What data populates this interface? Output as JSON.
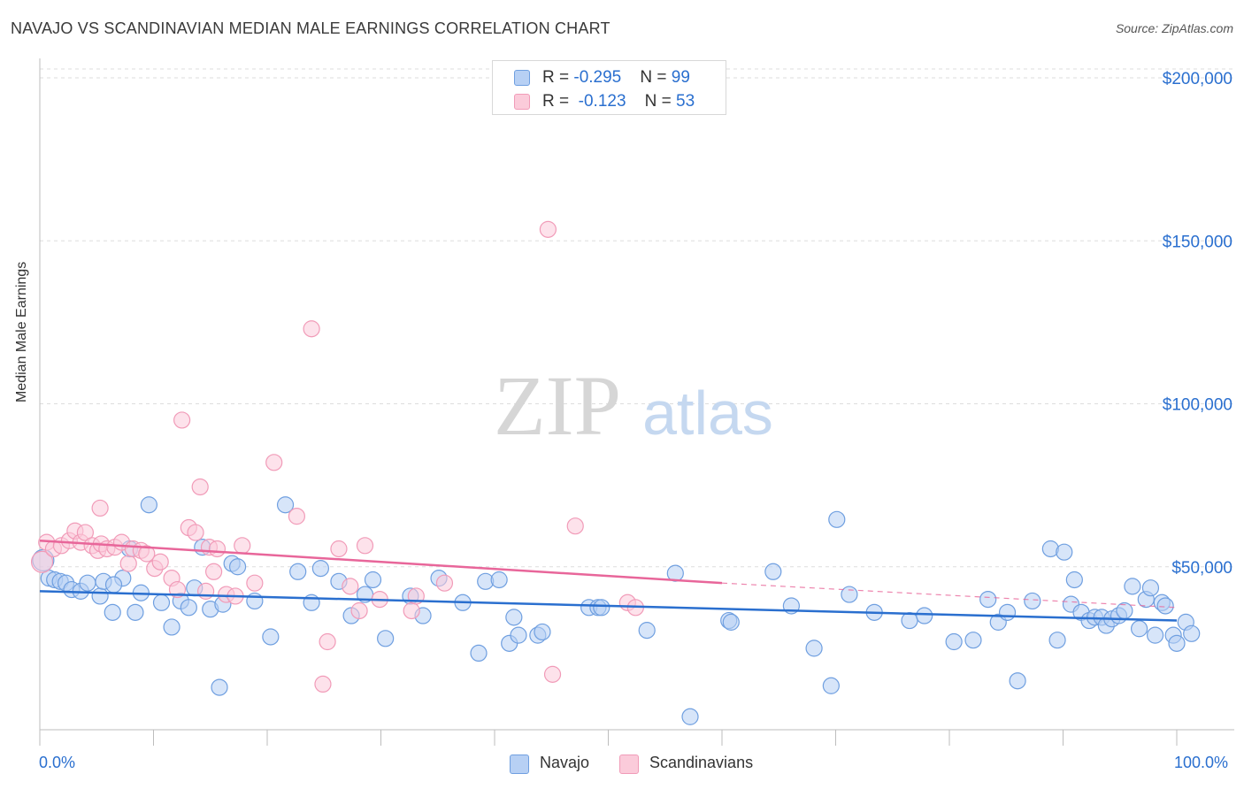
{
  "header": {
    "title": "NAVAJO VS SCANDINAVIAN MEDIAN MALE EARNINGS CORRELATION CHART",
    "source": "Source: ZipAtlas.com"
  },
  "watermark": {
    "zip": "ZIP",
    "atlas": "atlas"
  },
  "legend_top": [
    {
      "r_label": "R = ",
      "r_value": "-0.295",
      "n_label": "N = ",
      "n_value": "99",
      "color": "#6f9fe0",
      "fill": "#b7d0f4"
    },
    {
      "r_label": "R = ",
      "r_value": "-0.123",
      "n_label": "N = ",
      "n_value": "53",
      "color": "#f19bb8",
      "fill": "#fbcbda"
    }
  ],
  "legend_bottom": {
    "navajo": "Navajo",
    "scandinavians": "Scandinavians"
  },
  "chart_data": {
    "type": "scatter",
    "title": "NAVAJO VS SCANDINAVIAN MEDIAN MALE EARNINGS CORRELATION CHART",
    "xlabel": "",
    "ylabel": "Median Male Earnings",
    "xlim": [
      0,
      100
    ],
    "ylim": [
      0,
      210000
    ],
    "x_tick_labels": [
      "0.0%",
      "100.0%"
    ],
    "y_ticks": [
      {
        "value": 50000,
        "label": "$50,000"
      },
      {
        "value": 100000,
        "label": "$100,000"
      },
      {
        "value": 150000,
        "label": "$150,000"
      },
      {
        "value": 200000,
        "label": "$200,000"
      }
    ],
    "grid": true,
    "legend": "top-center",
    "series": [
      {
        "name": "Navajo",
        "color": "#6f9fe0",
        "fill": "#b7d0f4",
        "trend": {
          "x": [
            0,
            100
          ],
          "y": [
            42500,
            33500
          ],
          "color": "#2a6fcf",
          "dashed_from": null
        },
        "points": [
          [
            0.3,
            52000
          ],
          [
            0.8,
            46500
          ],
          [
            1.3,
            46000
          ],
          [
            1.8,
            45500
          ],
          [
            2.3,
            45000
          ],
          [
            2.8,
            43000
          ],
          [
            3.6,
            42500
          ],
          [
            5.3,
            41000
          ],
          [
            4.2,
            45000
          ],
          [
            5.6,
            45500
          ],
          [
            6.4,
            36000
          ],
          [
            7.3,
            46500
          ],
          [
            6.5,
            44500
          ],
          [
            8.4,
            36000
          ],
          [
            7.9,
            55500
          ],
          [
            8.9,
            42000
          ],
          [
            9.6,
            69000
          ],
          [
            10.7,
            39000
          ],
          [
            11.6,
            31500
          ],
          [
            12.4,
            39500
          ],
          [
            13.1,
            37500
          ],
          [
            13.6,
            43500
          ],
          [
            14.3,
            56000
          ],
          [
            15.0,
            37000
          ],
          [
            15.8,
            13000
          ],
          [
            16.1,
            38500
          ],
          [
            16.9,
            51000
          ],
          [
            17.4,
            50000
          ],
          [
            18.9,
            39500
          ],
          [
            20.3,
            28500
          ],
          [
            21.6,
            69000
          ],
          [
            22.7,
            48500
          ],
          [
            23.9,
            39000
          ],
          [
            24.7,
            49500
          ],
          [
            26.3,
            45500
          ],
          [
            27.4,
            35000
          ],
          [
            28.6,
            41500
          ],
          [
            29.3,
            46000
          ],
          [
            30.4,
            28000
          ],
          [
            33.7,
            35000
          ],
          [
            32.6,
            41000
          ],
          [
            35.1,
            46500
          ],
          [
            37.2,
            39000
          ],
          [
            38.6,
            23500
          ],
          [
            39.2,
            45500
          ],
          [
            40.4,
            46000
          ],
          [
            41.3,
            26500
          ],
          [
            41.7,
            34500
          ],
          [
            42.1,
            29000
          ],
          [
            43.8,
            29000
          ],
          [
            44.2,
            30000
          ],
          [
            48.3,
            37500
          ],
          [
            49.1,
            37500
          ],
          [
            49.4,
            37500
          ],
          [
            53.4,
            30500
          ],
          [
            55.9,
            48000
          ],
          [
            57.2,
            4000
          ],
          [
            60.6,
            33500
          ],
          [
            60.8,
            33000
          ],
          [
            64.5,
            48500
          ],
          [
            66.1,
            38000
          ],
          [
            68.1,
            25000
          ],
          [
            69.6,
            13500
          ],
          [
            70.1,
            64500
          ],
          [
            71.2,
            41500
          ],
          [
            73.4,
            36000
          ],
          [
            76.5,
            33500
          ],
          [
            77.8,
            35000
          ],
          [
            80.4,
            27000
          ],
          [
            82.1,
            27500
          ],
          [
            83.4,
            40000
          ],
          [
            84.3,
            33000
          ],
          [
            85.1,
            36000
          ],
          [
            86.0,
            15000
          ],
          [
            87.3,
            39500
          ],
          [
            88.9,
            55500
          ],
          [
            89.5,
            27500
          ],
          [
            90.1,
            54500
          ],
          [
            90.7,
            38500
          ],
          [
            91.0,
            46000
          ],
          [
            91.6,
            36000
          ],
          [
            92.3,
            33500
          ],
          [
            92.8,
            34500
          ],
          [
            93.4,
            34500
          ],
          [
            93.8,
            32000
          ],
          [
            94.3,
            34000
          ],
          [
            94.9,
            35000
          ],
          [
            95.4,
            36500
          ],
          [
            96.1,
            44000
          ],
          [
            96.7,
            31000
          ],
          [
            97.3,
            40000
          ],
          [
            97.7,
            43500
          ],
          [
            98.1,
            29000
          ],
          [
            98.7,
            39000
          ],
          [
            99.0,
            38000
          ],
          [
            99.7,
            29000
          ],
          [
            100.0,
            26500
          ],
          [
            100.8,
            33000
          ],
          [
            101.3,
            29500
          ]
        ]
      },
      {
        "name": "Scandinavians",
        "color": "#f19bb8",
        "fill": "#fbcbda",
        "trend": {
          "x": [
            0,
            60,
            100
          ],
          "y": [
            58000,
            45000,
            37500
          ],
          "color": "#e8669a",
          "dashed_from": 60
        },
        "points": [
          [
            0.2,
            51500
          ],
          [
            0.6,
            57500
          ],
          [
            1.2,
            55500
          ],
          [
            1.9,
            56500
          ],
          [
            2.6,
            58000
          ],
          [
            3.1,
            61000
          ],
          [
            3.6,
            57500
          ],
          [
            4.0,
            60500
          ],
          [
            4.6,
            56500
          ],
          [
            5.1,
            55000
          ],
          [
            5.4,
            57000
          ],
          [
            5.3,
            68000
          ],
          [
            5.9,
            55500
          ],
          [
            6.6,
            56000
          ],
          [
            7.2,
            57500
          ],
          [
            7.8,
            51000
          ],
          [
            8.2,
            55500
          ],
          [
            8.9,
            55000
          ],
          [
            9.4,
            54000
          ],
          [
            10.1,
            49500
          ],
          [
            10.6,
            51500
          ],
          [
            11.6,
            46500
          ],
          [
            12.1,
            43000
          ],
          [
            12.5,
            95000
          ],
          [
            13.1,
            62000
          ],
          [
            13.7,
            60500
          ],
          [
            14.1,
            74500
          ],
          [
            14.6,
            42500
          ],
          [
            14.9,
            56000
          ],
          [
            15.3,
            48500
          ],
          [
            15.6,
            55500
          ],
          [
            16.4,
            41500
          ],
          [
            17.2,
            41000
          ],
          [
            17.8,
            56500
          ],
          [
            18.9,
            45000
          ],
          [
            20.6,
            82000
          ],
          [
            22.6,
            65500
          ],
          [
            23.9,
            123000
          ],
          [
            24.9,
            14000
          ],
          [
            25.3,
            27000
          ],
          [
            26.3,
            55500
          ],
          [
            27.3,
            44000
          ],
          [
            28.1,
            36500
          ],
          [
            28.6,
            56500
          ],
          [
            29.9,
            40000
          ],
          [
            32.7,
            36500
          ],
          [
            33.1,
            41000
          ],
          [
            35.6,
            45000
          ],
          [
            44.7,
            153500
          ],
          [
            45.1,
            17000
          ],
          [
            47.1,
            62500
          ],
          [
            51.7,
            39000
          ],
          [
            52.4,
            37500
          ]
        ]
      }
    ]
  }
}
